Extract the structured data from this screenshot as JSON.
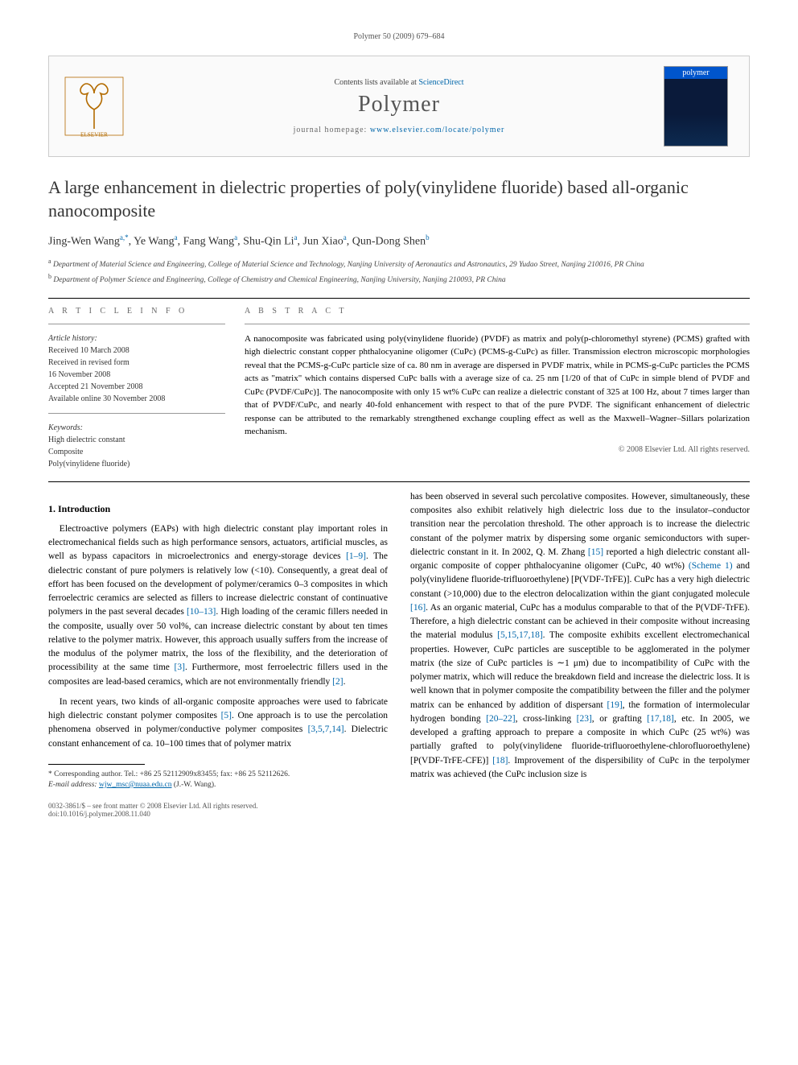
{
  "running_head": "Polymer 50 (2009) 679–684",
  "masthead": {
    "contents_prefix": "Contents lists available at ",
    "contents_link": "ScienceDirect",
    "journal": "Polymer",
    "homepage_prefix": "journal homepage: ",
    "homepage_url": "www.elsevier.com/locate/polymer",
    "cover_label": "polymer"
  },
  "title": "A large enhancement in dielectric properties of poly(vinylidene fluoride) based all-organic nanocomposite",
  "authors_html": "Jing-Wen Wang<sup>a,*</sup>, Ye Wang<sup>a</sup>, Fang Wang<sup>a</sup>, Shu-Qin Li<sup>a</sup>, Jun Xiao<sup>a</sup>, Qun-Dong Shen<sup>b</sup>",
  "affiliations": [
    "<sup>a</sup> Department of Material Science and Engineering, College of Material Science and Technology, Nanjing University of Aeronautics and Astronautics, 29 Yudao Street, Nanjing 210016, PR China",
    "<sup>b</sup> Department of Polymer Science and Engineering, College of Chemistry and Chemical Engineering, Nanjing University, Nanjing 210093, PR China"
  ],
  "info": {
    "heading": "A R T I C L E   I N F O",
    "history_label": "Article history:",
    "history": [
      "Received 10 March 2008",
      "Received in revised form",
      "16 November 2008",
      "Accepted 21 November 2008",
      "Available online 30 November 2008"
    ],
    "keywords_label": "Keywords:",
    "keywords": [
      "High dielectric constant",
      "Composite",
      "Poly(vinylidene fluoride)"
    ]
  },
  "abstract": {
    "heading": "A B S T R A C T",
    "text": "A nanocomposite was fabricated using poly(vinylidene fluoride) (PVDF) as matrix and poly(p-chloromethyl styrene) (PCMS) grafted with high dielectric constant copper phthalocyanine oligomer (CuPc) (PCMS-g-CuPc) as filler. Transmission electron microscopic morphologies reveal that the PCMS-g-CuPc particle size of ca. 80 nm in average are dispersed in PVDF matrix, while in PCMS-g-CuPc particles the PCMS acts as \"matrix\" which contains dispersed CuPc balls with a average size of ca. 25 nm [1/20 of that of CuPc in simple blend of PVDF and CuPc (PVDF/CuPc)]. The nanocomposite with only 15 wt% CuPc can realize a dielectric constant of 325 at 100 Hz, about 7 times larger than that of PVDF/CuPc, and nearly 40-fold enhancement with respect to that of the pure PVDF. The significant enhancement of dielectric response can be attributed to the remarkably strengthened exchange coupling effect as well as the Maxwell–Wagner–Sillars polarization mechanism.",
    "copyright": "© 2008 Elsevier Ltd. All rights reserved."
  },
  "sections": {
    "intro_head": "1. Introduction",
    "p1": "Electroactive polymers (EAPs) with high dielectric constant play important roles in electromechanical fields such as high performance sensors, actuators, artificial muscles, as well as bypass capacitors in microelectronics and energy-storage devices [1–9]. The dielectric constant of pure polymers is relatively low (<10). Consequently, a great deal of effort has been focused on the development of polymer/ceramics 0–3 composites in which ferroelectric ceramics are selected as fillers to increase dielectric constant of continuative polymers in the past several decades [10–13]. High loading of the ceramic fillers needed in the composite, usually over 50 vol%, can increase dielectric constant by about ten times relative to the polymer matrix. However, this approach usually suffers from the increase of the modulus of the polymer matrix, the loss of the flexibility, and the deterioration of processibility at the same time [3]. Furthermore, most ferroelectric fillers used in the composites are lead-based ceramics, which are not environmentally friendly [2].",
    "p2": "In recent years, two kinds of all-organic composite approaches were used to fabricate high dielectric constant polymer composites [5]. One approach is to use the percolation phenomena observed in polymer/conductive polymer composites [3,5,7,14]. Dielectric constant enhancement of ca. 10–100 times that of polymer matrix",
    "p3": "has been observed in several such percolative composites. However, simultaneously, these composites also exhibit relatively high dielectric loss due to the insulator–conductor transition near the percolation threshold. The other approach is to increase the dielectric constant of the polymer matrix by dispersing some organic semiconductors with super-dielectric constant in it. In 2002, Q. M. Zhang [15] reported a high dielectric constant all-organic composite of copper phthalocyanine oligomer (CuPc, 40 wt%) (Scheme 1) and poly(vinylidene fluoride-trifluoroethylene) [P(VDF-TrFE)]. CuPc has a very high dielectric constant (>10,000) due to the electron delocalization within the giant conjugated molecule [16]. As an organic material, CuPc has a modulus comparable to that of the P(VDF-TrFE). Therefore, a high dielectric constant can be achieved in their composite without increasing the material modulus [5,15,17,18]. The composite exhibits excellent electromechanical properties. However, CuPc particles are susceptible to be agglomerated in the polymer matrix (the size of CuPc particles is ∼1 μm) due to incompatibility of CuPc with the polymer matrix, which will reduce the breakdown field and increase the dielectric loss. It is well known that in polymer composite the compatibility between the filler and the polymer matrix can be enhanced by addition of dispersant [19], the formation of intermolecular hydrogen bonding [20–22], cross-linking [23], or grafting [17,18], etc. In 2005, we developed a grafting approach to prepare a composite in which CuPc (25 wt%) was partially grafted to poly(vinylidene fluoride-trifluoroethylene-chlorofluoroethylene) [P(VDF-TrFE-CFE)] [18]. Improvement of the dispersibility of CuPc in the terpolymer matrix was achieved (the CuPc inclusion size is"
  },
  "footnote": {
    "corresponding": "* Corresponding author. Tel.: +86 25 52112909x83455; fax: +86 25 52112626.",
    "email_label": "E-mail address:",
    "email": "wjw_msc@nuaa.edu.cn",
    "email_suffix": "(J.-W. Wang)."
  },
  "doi": {
    "line1": "0032-3861/$ – see front matter © 2008 Elsevier Ltd. All rights reserved.",
    "line2": "doi:10.1016/j.polymer.2008.11.040"
  },
  "colors": {
    "link": "#0066aa",
    "text": "#000000",
    "muted": "#555555",
    "rule": "#000000",
    "cover_bg": "#0a1a3a",
    "cover_band": "#0055cc"
  }
}
